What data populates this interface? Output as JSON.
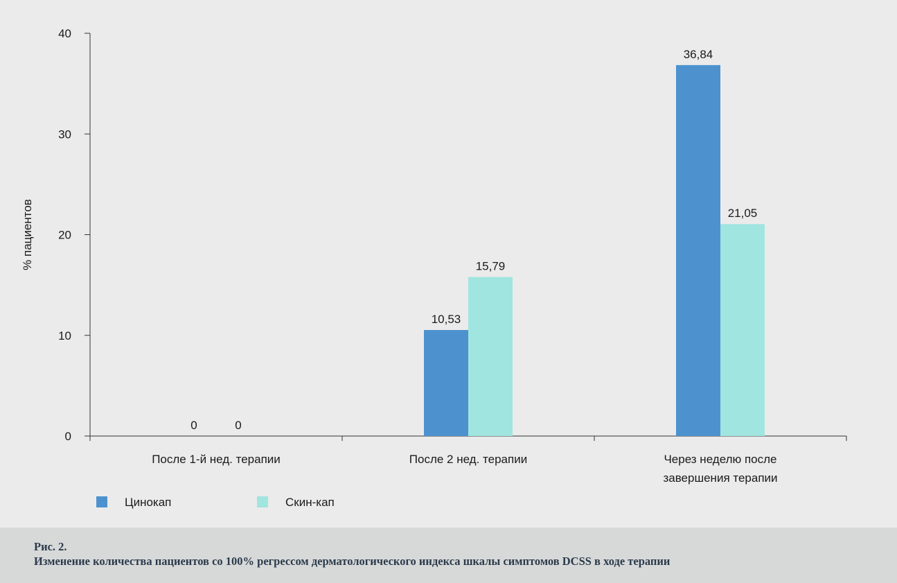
{
  "chart_data": {
    "type": "bar",
    "categories": [
      [
        "После 1-й нед. терапии"
      ],
      [
        "После 2 нед. терапии"
      ],
      [
        "Через неделю после",
        "завершения терапии"
      ]
    ],
    "series": [
      {
        "name": "Цинокап",
        "values": [
          0,
          10.53,
          36.84
        ],
        "labels": [
          "0",
          "10,53",
          "36,84"
        ],
        "color": "#4d92ce"
      },
      {
        "name": "Скин-кап",
        "values": [
          0,
          15.79,
          21.05
        ],
        "labels": [
          "0",
          "15,79",
          "21,05"
        ],
        "color": "#a0e5df"
      }
    ],
    "ylabel": "% пациентов",
    "xlabel": "",
    "ylim": [
      0,
      40
    ],
    "yticks": [
      "0",
      "10",
      "20",
      "30",
      "40"
    ],
    "grid": false,
    "legend_position": "bottom-left"
  },
  "caption": {
    "number": "Рис. 2.",
    "text": "Изменение количества пациентов со 100% регрессом дерматологического индекса шкалы симптомов DCSS в ходе терапии"
  }
}
